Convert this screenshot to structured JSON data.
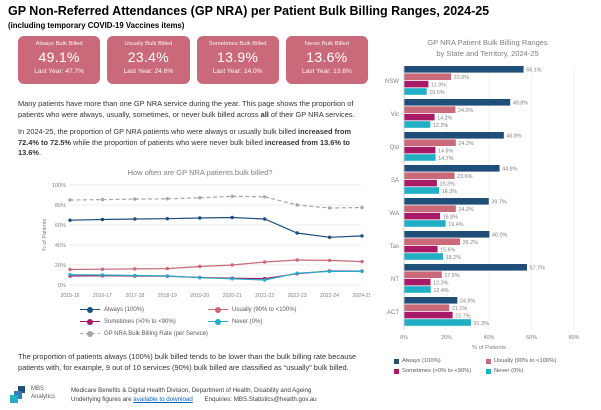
{
  "theme": {
    "card_bg": "#C9697A",
    "always_color": "#1F4E79",
    "usually_color": "#C9697A",
    "sometimes_color": "#A81A66",
    "never_color": "#21AFC4",
    "rate_color": "#A6A6A6"
  },
  "header": {
    "title": "GP Non-Referred Attendances (GP NRA) per Patient Bulk Billing Ranges, 2024-25",
    "subtitle": "(including temporary COVID-19 Vaccines items)"
  },
  "kpi_cards": [
    {
      "label": "Always Bulk Billed",
      "value": "49.1%",
      "last_year": "Last Year: 47.7%"
    },
    {
      "label": "Usually Bulk Billed",
      "value": "23.4%",
      "last_year": "Last Year: 24.6%"
    },
    {
      "label": "Sometimes Bulk Billed",
      "value": "13.9%",
      "last_year": "Last Year: 14.0%"
    },
    {
      "label": "Never Bulk Billed",
      "value": "13.6%",
      "last_year": "Last Year: 13.6%"
    }
  ],
  "intro": {
    "p1a": "Many patients have more than one GP NRA service during the year. This page shows the proportion of patients who were always, usually, sometimes, or never bulk billed across ",
    "p1b": "all",
    "p1c": " of their GP NRA services.",
    "p2a": "In 2024-25, the proportion of GP NRA patients who were always or usually bulk billed ",
    "p2b": "increased from 72.4% to 72.5%",
    "p2c": " while the proportion of patients who were never bulk billed ",
    "p2d": "increased from 13.6% to 13.6%",
    "p2e": "."
  },
  "chart_data": [
    {
      "type": "line",
      "title": "How often are GP NRA patients bulk billed?",
      "ylabel": "% of Patients",
      "ylim": [
        0,
        100
      ],
      "yticks": [
        0,
        20,
        40,
        60,
        80,
        100
      ],
      "x": [
        "2015-16",
        "2016-17",
        "2017-18",
        "2018-19",
        "2019-20",
        "2020-21",
        "2021-22",
        "2022-23",
        "2023-24",
        "2024-25"
      ],
      "legend_position": "bottom",
      "series": [
        {
          "name": "Always (100%)",
          "color": "#1F4E79",
          "style": "solid",
          "values": [
            64.8,
            65.5,
            66.0,
            66.3,
            67.0,
            67.5,
            66.0,
            52.0,
            47.7,
            49.1
          ]
        },
        {
          "name": "Usually (90% to <100%)",
          "color": "#C9697A",
          "style": "solid",
          "values": [
            15.5,
            15.8,
            16.1,
            16.4,
            18.5,
            20.0,
            23.0,
            25.0,
            24.6,
            23.4
          ]
        },
        {
          "name": "Sometimes (>0% to <90%)",
          "color": "#A81A66",
          "style": "solid",
          "values": [
            9.0,
            9.2,
            9.0,
            8.8,
            7.5,
            6.8,
            6.4,
            11.3,
            14.0,
            13.9
          ]
        },
        {
          "name": "Never (0%)",
          "color": "#21AFC4",
          "style": "solid",
          "values": [
            10.3,
            10.0,
            9.5,
            9.1,
            7.3,
            6.2,
            5.0,
            11.8,
            13.6,
            13.6
          ]
        },
        {
          "name": "GP NRA Bulk Billing Rate (per Service)",
          "color": "#A6A6A6",
          "style": "dashed",
          "values": [
            85.0,
            85.4,
            85.9,
            86.2,
            87.2,
            88.7,
            88.2,
            80.0,
            77.0,
            77.5
          ]
        }
      ]
    },
    {
      "type": "bar",
      "title": "GP NRA Patient Bulk Billing Ranges",
      "subtitle": "by State and Territory, 2024-25",
      "orientation": "horizontal",
      "xlabel": "% of Patients",
      "xlim": [
        0,
        80
      ],
      "xticks": [
        0,
        20,
        40,
        60,
        80
      ],
      "categories": [
        "NSW",
        "Vic",
        "Qld",
        "SA",
        "WA",
        "Tas",
        "NT",
        "ACT"
      ],
      "series": [
        {
          "name": "Always (100%)",
          "color": "#1F4E79",
          "values": [
            56.1,
            49.8,
            46.8,
            44.8,
            39.7,
            40.0,
            57.7,
            24.9
          ]
        },
        {
          "name": "Usually (90% to <100%)",
          "color": "#C9697A",
          "values": [
            22.0,
            24.0,
            24.2,
            23.6,
            24.2,
            26.2,
            17.6,
            21.1
          ]
        },
        {
          "name": "Sometimes (>0% to <90%)",
          "color": "#A81A66",
          "values": [
            11.3,
            14.2,
            14.6,
            15.3,
            16.8,
            15.6,
            12.3,
            22.7
          ]
        },
        {
          "name": "Never (0%)",
          "color": "#21AFC4",
          "values": [
            10.5,
            12.2,
            14.7,
            16.3,
            19.4,
            18.2,
            12.4,
            31.3
          ]
        }
      ]
    }
  ],
  "footnote": "The proportion of patients always (100%) bulk billed tends to be lower than the bulk billing rate because patients with, for example, 9 out of 10 services (90%) bulk billed are classified as “usually” bulk billed.",
  "footer": {
    "logo_line1": "MBS",
    "logo_line2": "Analytics",
    "org_line": "Medicare Benefits & Digital Health Division, Department of Health, Disability and Ageing",
    "figures_prefix": "Underlying figures are ",
    "figures_link": "available to download",
    "enquiries": "Enquiries: MBS.Statistics@health.gov.au"
  }
}
